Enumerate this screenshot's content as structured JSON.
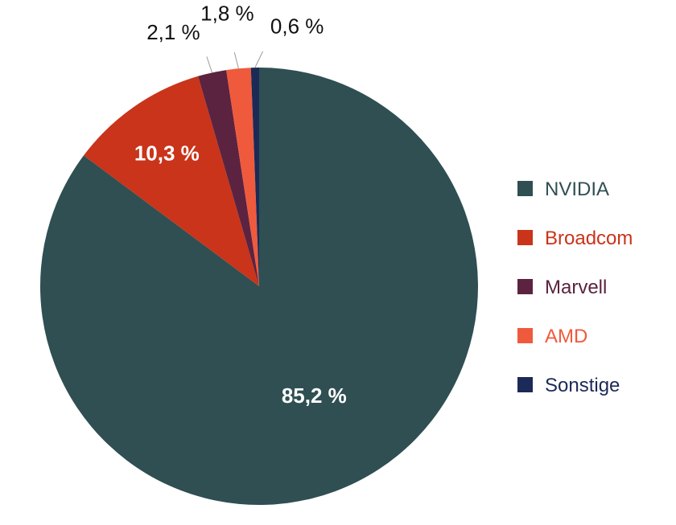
{
  "chart_data": {
    "type": "pie",
    "title": "",
    "slices": [
      {
        "name": "NVIDIA",
        "value": 85.2,
        "label": "85,2 %",
        "color": "#2f4f52",
        "label_color": "#ffffff",
        "label_position": "inside"
      },
      {
        "name": "Broadcom",
        "value": 10.3,
        "label": "10,3 %",
        "color": "#c9341a",
        "label_color": "#ffffff",
        "label_position": "inside"
      },
      {
        "name": "Marvell",
        "value": 2.1,
        "label": "2,1 %",
        "color": "#5b2340",
        "label_color": "#111111",
        "label_position": "outside"
      },
      {
        "name": "AMD",
        "value": 1.8,
        "label": "1,8 %",
        "color": "#ef5a3c",
        "label_color": "#111111",
        "label_position": "outside"
      },
      {
        "name": "Sonstige",
        "value": 0.6,
        "label": "0,6 %",
        "color": "#1b2a57",
        "label_color": "#111111",
        "label_position": "outside"
      }
    ],
    "legend": {
      "position": "right",
      "entries": [
        {
          "label": "NVIDIA",
          "color": "#2f4f52"
        },
        {
          "label": "Broadcom",
          "color": "#c9341a"
        },
        {
          "label": "Marvell",
          "color": "#5b2340"
        },
        {
          "label": "AMD",
          "color": "#ef5a3c"
        },
        {
          "label": "Sonstige",
          "color": "#1b2a57"
        }
      ]
    }
  }
}
